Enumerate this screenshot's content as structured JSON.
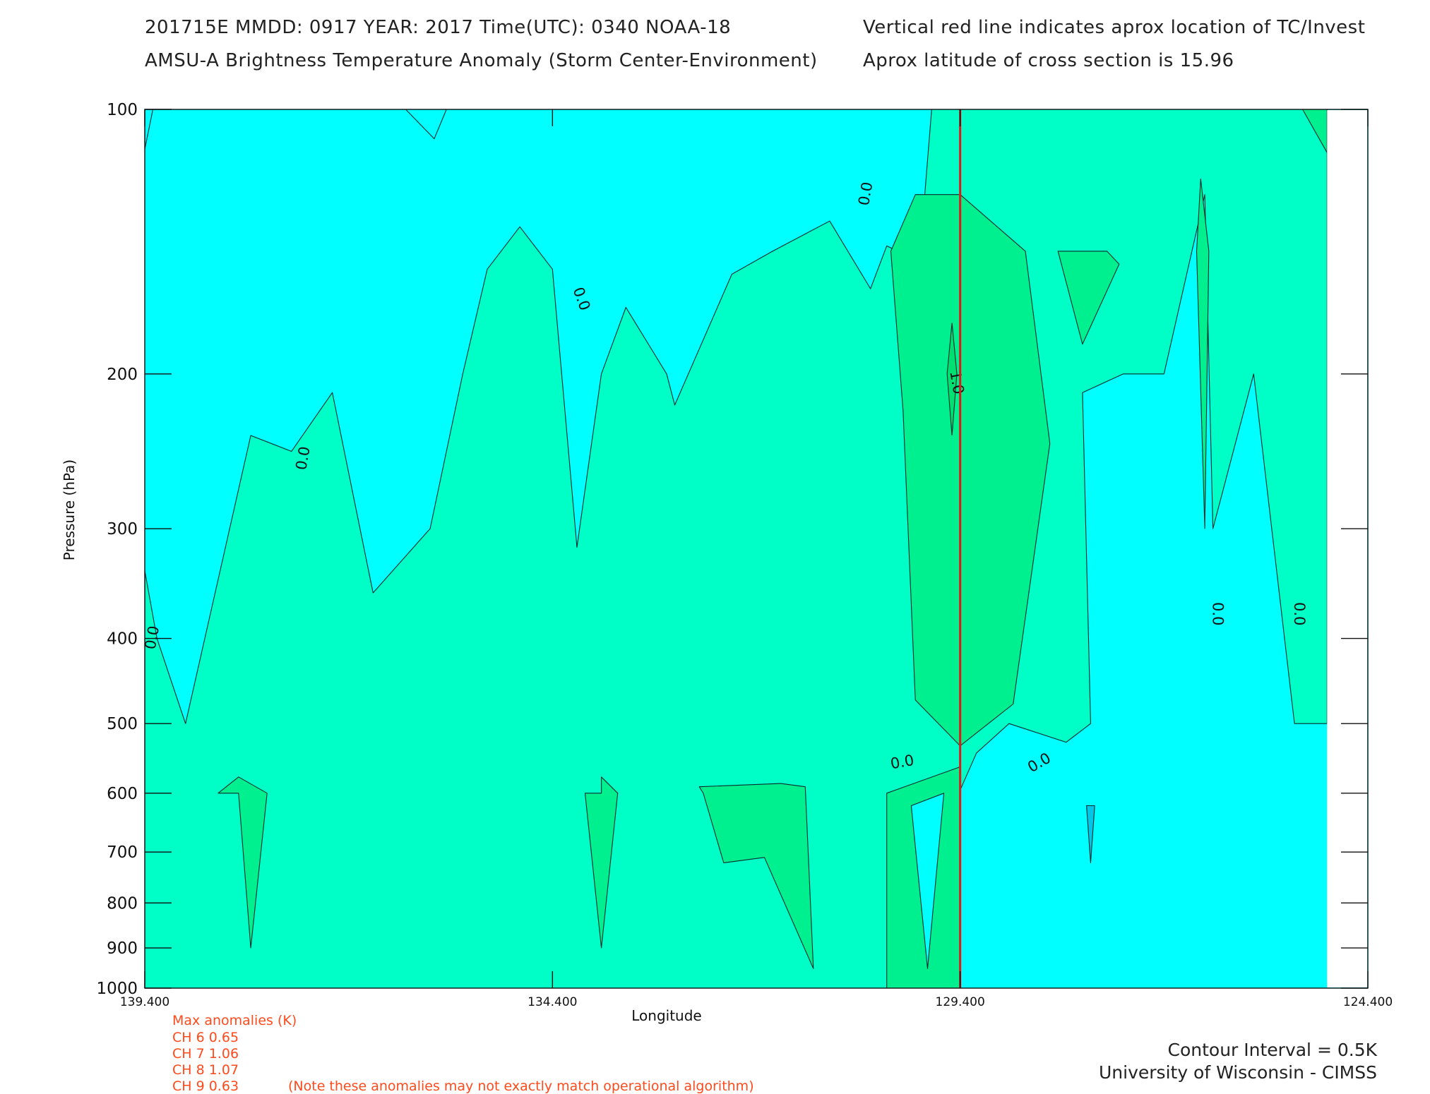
{
  "header": {
    "line1_left": "201715E  MMDD: 0917 YEAR: 2017 Time(UTC): 0340 NOAA-18",
    "line2_left": "AMSU-A Brightness Temperature Anomaly (Storm Center-Environment)",
    "line1_right": "Vertical red line indicates aprox location of TC/Invest",
    "line2_right": "Aprox latitude of cross section is 15.96"
  },
  "chart_data": {
    "type": "contour",
    "xlabel": "Longitude",
    "ylabel": "Pressure (hPa)",
    "x_reversed": true,
    "xlim": [
      139.4,
      124.4
    ],
    "ylim": [
      1000,
      100
    ],
    "y_scale": "log",
    "x_ticks": [
      "139.400",
      "134.400",
      "129.400",
      "124.400"
    ],
    "y_ticks": [
      "100",
      "200",
      "300",
      "400",
      "500",
      "600",
      "700",
      "800",
      "900",
      "1000"
    ],
    "contour_interval_K": 0.5,
    "contour_labels": [
      "0.0",
      "0.0",
      "0.0",
      "0.0",
      "1.0",
      "0.0",
      "0.0",
      "0.0",
      "0.0",
      "0.0"
    ],
    "storm_center_longitude": 129.4,
    "storm_line_color": "#e01818",
    "level_colors": {
      "below_-0.5": "#00c6e8",
      "-0.5_to_0.0": "#00ffff",
      "0.0_to_0.5": "#00ffc6",
      "0.5_to_1.0": "#00f090",
      "above_1.0": "#00e070"
    },
    "bands": [
      {
        "level": 0.0,
        "color": "#00ffc6",
        "points": [
          [
            139.4,
            335
          ],
          [
            139.25,
            400
          ],
          [
            138.9,
            500
          ],
          [
            138.1,
            235
          ],
          [
            137.6,
            245
          ],
          [
            137.1,
            210
          ],
          [
            136.6,
            355
          ],
          [
            135.9,
            300
          ],
          [
            135.5,
            200
          ],
          [
            135.5,
            200
          ],
          [
            135.2,
            152
          ],
          [
            134.8,
            136
          ],
          [
            134.4,
            152
          ],
          [
            134.1,
            315
          ],
          [
            133.8,
            200
          ],
          [
            133.5,
            168
          ],
          [
            133.0,
            200
          ],
          [
            132.9,
            217
          ],
          [
            132.2,
            154
          ],
          [
            131.7,
            145
          ],
          [
            131.0,
            134
          ],
          [
            130.5,
            160
          ],
          [
            130.3,
            143
          ],
          [
            129.9,
            149
          ],
          [
            129.75,
            100
          ],
          [
            124.9,
            100
          ],
          [
            124.9,
            500
          ],
          [
            125.3,
            500
          ],
          [
            125.8,
            200
          ],
          [
            126.3,
            300
          ],
          [
            126.4,
            125
          ],
          [
            126.9,
            200
          ],
          [
            127.4,
            200
          ],
          [
            127.9,
            210
          ],
          [
            127.8,
            500
          ],
          [
            128.1,
            525
          ],
          [
            128.8,
            500
          ],
          [
            129.2,
            540
          ],
          [
            129.4,
            595
          ],
          [
            129.4,
            1000
          ],
          [
            139.4,
            1000
          ]
        ]
      },
      {
        "level": 0.5,
        "color": "#00f090",
        "points": [
          [
            130.3,
            1000
          ],
          [
            130.3,
            600
          ],
          [
            129.4,
            560
          ],
          [
            129.4,
            1000
          ]
        ]
      },
      {
        "level": 0.5,
        "color": "#00f090",
        "points": [
          [
            129.4,
            125
          ],
          [
            129.95,
            125
          ],
          [
            130.25,
            145
          ],
          [
            130.1,
            220
          ],
          [
            129.95,
            470
          ],
          [
            129.4,
            530
          ],
          [
            128.75,
            475
          ],
          [
            128.3,
            240
          ],
          [
            128.6,
            145
          ],
          [
            129.4,
            125
          ]
        ]
      },
      {
        "level": 0.5,
        "color": "#00f090",
        "points": [
          [
            138.5,
            600
          ],
          [
            138.25,
            600
          ],
          [
            138.1,
            900
          ],
          [
            137.9,
            600
          ],
          [
            138.25,
            575
          ]
        ]
      },
      {
        "level": 0.5,
        "color": "#00f090",
        "points": [
          [
            133.8,
            600
          ],
          [
            134.0,
            600
          ],
          [
            133.8,
            900
          ],
          [
            133.6,
            600
          ],
          [
            133.8,
            575
          ]
        ]
      },
      {
        "level": 0.5,
        "color": "#00f090",
        "points": [
          [
            132.6,
            590
          ],
          [
            131.6,
            585
          ],
          [
            131.3,
            590
          ],
          [
            131.2,
            950
          ],
          [
            131.8,
            710
          ],
          [
            132.3,
            720
          ],
          [
            132.55,
            600
          ]
        ]
      },
      {
        "level": 0.5,
        "color": "#00f090",
        "points": [
          [
            128.2,
            145
          ],
          [
            127.6,
            145
          ],
          [
            127.45,
            150
          ],
          [
            127.9,
            185
          ],
          [
            128.2,
            145
          ]
        ]
      },
      {
        "level": 0.5,
        "color": "#00f090",
        "points": [
          [
            126.45,
            120
          ],
          [
            126.5,
            145
          ],
          [
            126.4,
            300
          ],
          [
            126.35,
            145
          ]
        ]
      },
      {
        "level": 0.5,
        "color": "#00f090",
        "points": [
          [
            124.9,
            100
          ],
          [
            125.2,
            100
          ],
          [
            124.9,
            112
          ]
        ]
      },
      {
        "level": -0.5,
        "color": "#00ffff",
        "points": [
          [
            139.4,
            100
          ],
          [
            139.3,
            100
          ],
          [
            139.4,
            111
          ]
        ]
      },
      {
        "level": -0.5,
        "color": "#00ffff",
        "points": [
          [
            136.2,
            100
          ],
          [
            135.7,
            100
          ],
          [
            135.85,
            108
          ]
        ]
      },
      {
        "level": -0.5,
        "color": "#00ffff",
        "points": [
          [
            129.6,
            600
          ],
          [
            129.8,
            950
          ],
          [
            130.0,
            620
          ],
          [
            129.6,
            600
          ]
        ]
      },
      {
        "level": -1.0,
        "color": "#00c6e8",
        "points": [
          [
            127.8,
            620
          ],
          [
            127.85,
            620
          ],
          [
            127.8,
            720
          ],
          [
            127.75,
            620
          ]
        ]
      }
    ],
    "peak_1.0_contour": {
      "x": 129.5,
      "ymin": 175,
      "ymax": 235
    },
    "max_anomalies": {
      "title": "Max anomalies (K)",
      "channels": [
        {
          "label": "CH 6",
          "value": 0.65
        },
        {
          "label": "CH 7",
          "value": 1.06
        },
        {
          "label": "CH 8",
          "value": 1.07
        },
        {
          "label": "CH 9",
          "value": 0.63
        }
      ]
    }
  },
  "anomalies": {
    "title": "Max anomalies (K)",
    "ch6": "CH 6  0.65",
    "ch7": "CH 7  1.06",
    "ch8": "CH 8  1.07",
    "ch9": "CH 9  0.63",
    "note": "(Note these anomalies may not exactly match operational algorithm)"
  },
  "footer": {
    "contour_interval": "Contour Interval = 0.5K",
    "institution": "University of Wisconsin - CIMSS"
  }
}
